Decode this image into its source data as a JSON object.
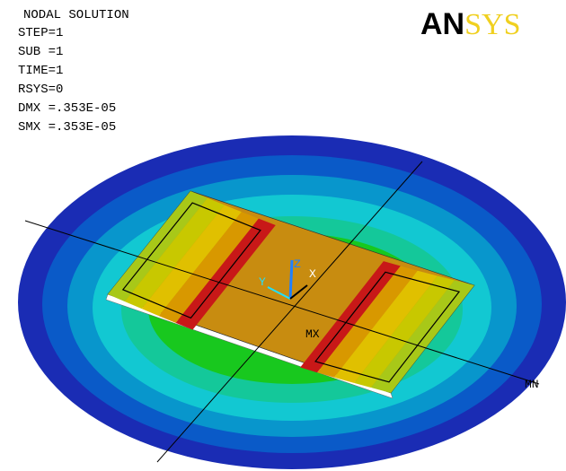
{
  "header": {
    "lines": [
      "NODAL SOLUTION",
      "STEP=1",
      "SUB =1",
      "TIME=1",
      "RSYS=0",
      "DMX =.353E-05",
      "SMX =.353E-05"
    ]
  },
  "logo": [
    "AN",
    "SYS"
  ],
  "labels": {
    "max": "MX",
    "min": "MN",
    "x_axis": "X",
    "y_axis": "Y",
    "z_axis": "Z"
  }
}
